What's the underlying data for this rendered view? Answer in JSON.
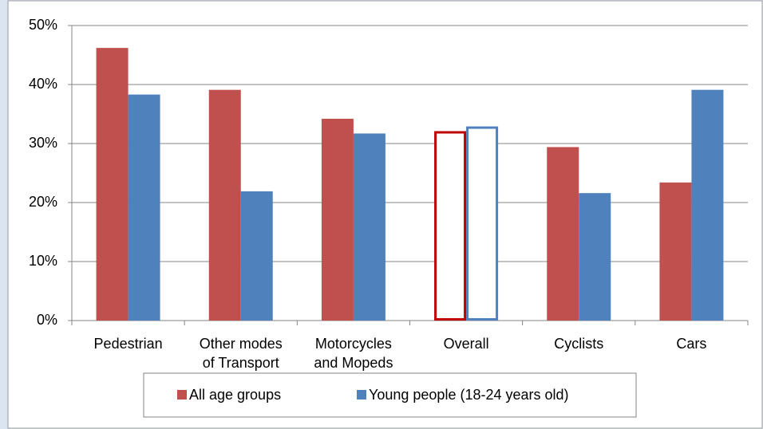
{
  "chart_data": {
    "type": "bar",
    "categories": [
      "Pedestrian",
      "Other modes of Transport",
      "Motorcycles and Mopeds",
      "Overall",
      "Cyclists",
      "Cars"
    ],
    "series": [
      {
        "name": "All age groups",
        "color": "#c0504d",
        "outline_color": "#c00000",
        "values": [
          46.2,
          39.1,
          34.2,
          32.1,
          29.4,
          23.4
        ]
      },
      {
        "name": "Young people (18-24 years old)",
        "color": "#4f81bd",
        "outline_color": "#4f81bd",
        "values": [
          38.3,
          21.9,
          31.7,
          32.9,
          21.6,
          39.1
        ]
      }
    ],
    "hollow": [
      3
    ],
    "ylim": [
      0,
      50
    ],
    "yticks": [
      {
        "value": 0,
        "label": "0%"
      },
      {
        "value": 10,
        "label": "10%"
      },
      {
        "value": 20,
        "label": "20%"
      },
      {
        "value": 30,
        "label": "30%"
      },
      {
        "value": 40,
        "label": "40%"
      },
      {
        "value": 50,
        "label": "50%"
      }
    ],
    "grid": true,
    "legend": "bottom"
  }
}
